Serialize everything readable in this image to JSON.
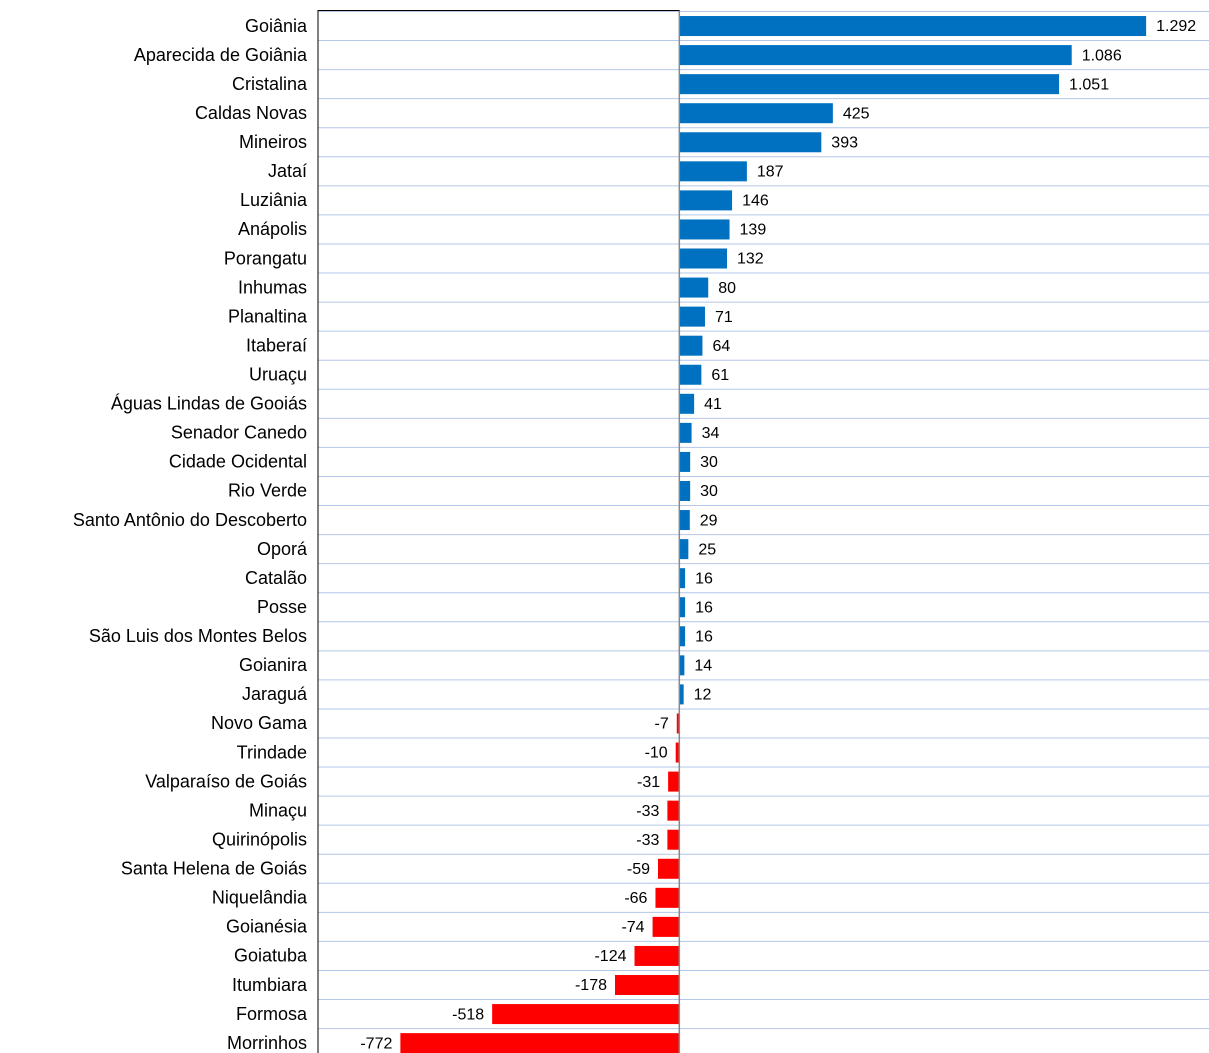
{
  "chart_data": {
    "type": "bar",
    "orientation": "horizontal",
    "categories": [
      "Goiânia",
      "Aparecida de Goiânia",
      "Cristalina",
      "Caldas Novas",
      "Mineiros",
      "Jataí",
      "Luziânia",
      "Anápolis",
      "Porangatu",
      "Inhumas",
      "Planaltina",
      "Itaberaí",
      "Uruaçu",
      "Águas Lindas de Gooiás",
      "Senador Canedo",
      "Cidade Ocidental",
      "Rio Verde",
      "Santo Antônio do Descoberto",
      "Oporá",
      "Catalão",
      "Posse",
      "São Luis dos Montes Belos",
      "Goianira",
      "Jaraguá",
      "Novo Gama",
      "Trindade",
      "Valparaíso de Goiás",
      "Minaçu",
      "Quirinópolis",
      "Santa Helena de Goiás",
      "Niquelândia",
      "Goianésia",
      "Goiatuba",
      "Itumbiara",
      "Formosa",
      "Morrinhos"
    ],
    "values": [
      1292,
      1086,
      1051,
      425,
      393,
      187,
      146,
      139,
      132,
      80,
      71,
      64,
      61,
      41,
      34,
      30,
      30,
      29,
      25,
      16,
      16,
      16,
      14,
      12,
      -7,
      -10,
      -31,
      -33,
      -33,
      -59,
      -66,
      -74,
      -124,
      -178,
      -518,
      -772
    ],
    "value_labels": [
      "1.292",
      "1.086",
      "1.051",
      "425",
      "393",
      "187",
      "146",
      "139",
      "132",
      "80",
      "71",
      "64",
      "61",
      "41",
      "34",
      "30",
      "30",
      "29",
      "25",
      "16",
      "16",
      "16",
      "14",
      "12",
      "-7",
      "-10",
      "-31",
      "-33",
      "-33",
      "-59",
      "-66",
      "-74",
      "-124",
      "-178",
      "-518",
      "-772"
    ],
    "color": "#0070c0",
    "negative_color": "#ff0000",
    "xlim": [
      -1000,
      1466
    ],
    "grid": true
  }
}
